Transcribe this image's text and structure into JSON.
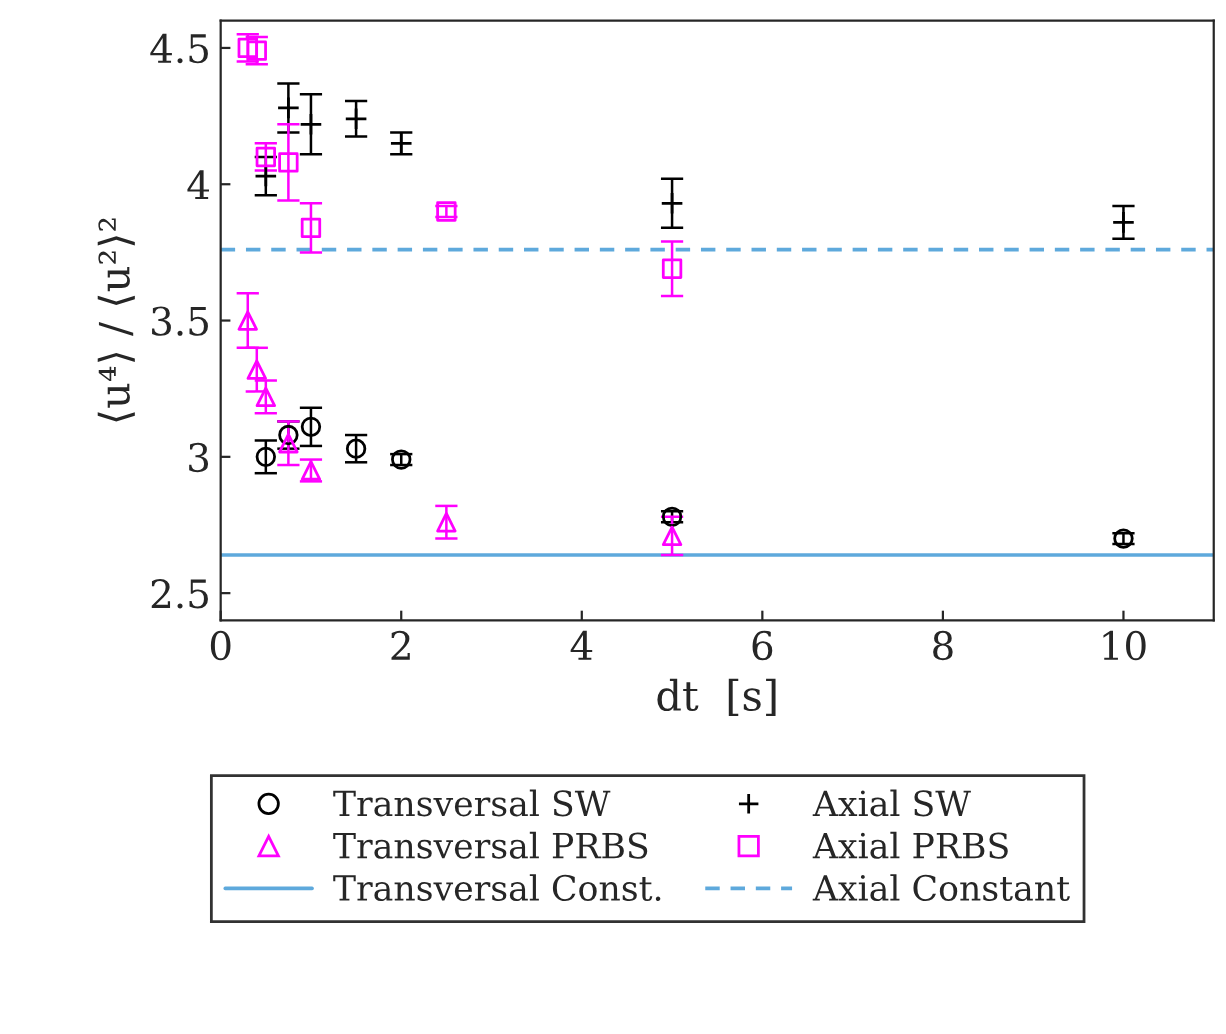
{
  "chart_data": {
    "type": "scatter",
    "xlabel": "dt  [s]",
    "ylabel": "⟨u⁴⟩ / ⟨u²⟩²",
    "xlim": [
      0,
      11
    ],
    "xticks": [
      0,
      2,
      4,
      6,
      8,
      10
    ],
    "ylim": [
      2.4,
      4.6
    ],
    "yticks": [
      2.5,
      3,
      3.5,
      4,
      4.5
    ],
    "grid": false,
    "legend": "bottom",
    "series": [
      {
        "name": "Transversal SW",
        "color": "#000000",
        "marker": "circle",
        "x": [
          0.5,
          0.75,
          1,
          1.5,
          2,
          5,
          10
        ],
        "values": [
          3.0,
          3.08,
          3.11,
          3.03,
          2.99,
          2.78,
          2.7
        ],
        "errors": [
          0.06,
          0.05,
          0.07,
          0.05,
          0.02,
          0.02,
          0.02
        ]
      },
      {
        "name": "Axial SW",
        "color": "#000000",
        "marker": "cross",
        "x": [
          0.5,
          0.75,
          1,
          1.5,
          2,
          5,
          10
        ],
        "values": [
          4.03,
          4.28,
          4.22,
          4.24,
          4.15,
          3.93,
          3.86
        ],
        "errors": [
          0.07,
          0.09,
          0.11,
          0.065,
          0.04,
          0.09,
          0.06
        ]
      },
      {
        "name": "Transversal PRBS",
        "color": "#ff00ff",
        "marker": "triangle",
        "x": [
          0.3,
          0.4,
          0.5,
          0.75,
          1,
          2.5,
          5
        ],
        "values": [
          3.5,
          3.32,
          3.22,
          3.05,
          2.95,
          2.76,
          2.71
        ],
        "errors": [
          0.1,
          0.08,
          0.06,
          0.08,
          0.04,
          0.06,
          0.07
        ]
      },
      {
        "name": "Axial PRBS",
        "color": "#ff00ff",
        "marker": "square",
        "x": [
          0.3,
          0.4,
          0.5,
          0.75,
          1,
          2.5,
          5
        ],
        "values": [
          4.5,
          4.49,
          4.1,
          4.08,
          3.84,
          3.9,
          3.69
        ],
        "errors": [
          0.05,
          0.05,
          0.05,
          0.14,
          0.09,
          0.02,
          0.1
        ]
      }
    ],
    "ref_lines": [
      {
        "axis": "y",
        "value": 2.64,
        "label": "Transversal Const.",
        "color": "#5ea9dc",
        "line_style": "solid"
      },
      {
        "axis": "y",
        "value": 3.76,
        "label": "Axial Constant",
        "color": "#5ea9dc",
        "line_style": "dashed"
      }
    ]
  }
}
